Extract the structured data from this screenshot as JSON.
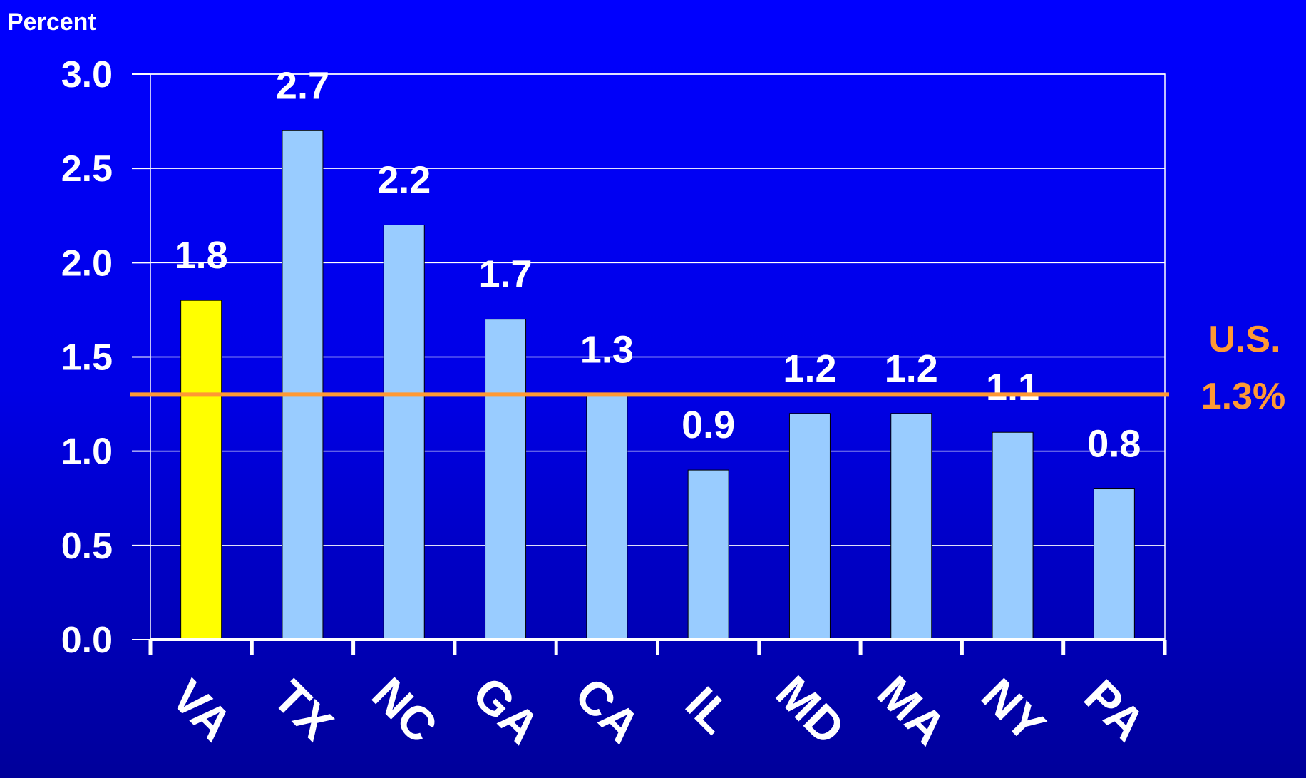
{
  "chart_data": {
    "type": "bar",
    "ylabel": "Percent",
    "ylim": [
      0,
      3.0
    ],
    "y_ticks": [
      "0.0",
      "0.5",
      "1.0",
      "1.5",
      "2.0",
      "2.5",
      "3.0"
    ],
    "grid": true,
    "categories": [
      "VA",
      "TX",
      "NC",
      "GA",
      "CA",
      "IL",
      "MD",
      "MA",
      "NY",
      "PA"
    ],
    "values": [
      1.8,
      2.7,
      2.2,
      1.7,
      1.3,
      0.9,
      1.2,
      1.2,
      1.1,
      0.8
    ],
    "data_labels": [
      "1.8",
      "2.7",
      "2.2",
      "1.7",
      "1.3",
      "0.9",
      "1.2",
      "1.2",
      "1.1",
      "0.8"
    ],
    "highlight_category": "VA",
    "reference_line": {
      "value": 1.3,
      "label_line1": "U.S.",
      "label_line2": "1.3%"
    }
  },
  "colors": {
    "background_top": "#0000ff",
    "background_bottom": "#00009a",
    "bar": "#99ccff",
    "highlight_bar": "#ffff00",
    "reference_line": "#ff9933",
    "text": "#ffffff",
    "grid": "#ffffff"
  }
}
